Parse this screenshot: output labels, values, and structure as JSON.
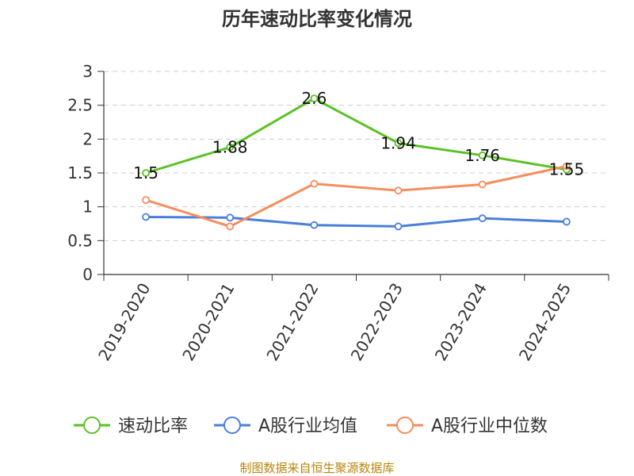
{
  "title": "历年速动比率变化情况",
  "source": "制图数据来自恒生聚源数据库",
  "chart_data": {
    "type": "line",
    "categories": [
      "2019-2020",
      "2020-2021",
      "2021-2022",
      "2022-2023",
      "2023-2024",
      "2024-2025"
    ],
    "ylim": [
      0,
      3
    ],
    "yticks": [
      "0",
      "0.5",
      "1",
      "1.5",
      "2",
      "2.5",
      "3"
    ],
    "grid": true,
    "legend_position": "bottom",
    "series": [
      {
        "name": "速动比率",
        "color": "#5bc225",
        "values": [
          1.5,
          1.88,
          2.6,
          1.94,
          1.76,
          1.55
        ],
        "labels": [
          "1.5",
          "1.88",
          "2.6",
          "1.94",
          "1.76",
          "1.55"
        ]
      },
      {
        "name": "A股行业均值",
        "color": "#4a7fd9",
        "values": [
          0.85,
          0.84,
          0.73,
          0.71,
          0.83,
          0.78
        ]
      },
      {
        "name": "A股行业中位数",
        "color": "#f78c5c",
        "values": [
          1.1,
          0.71,
          1.34,
          1.24,
          1.33,
          1.6
        ]
      }
    ]
  }
}
